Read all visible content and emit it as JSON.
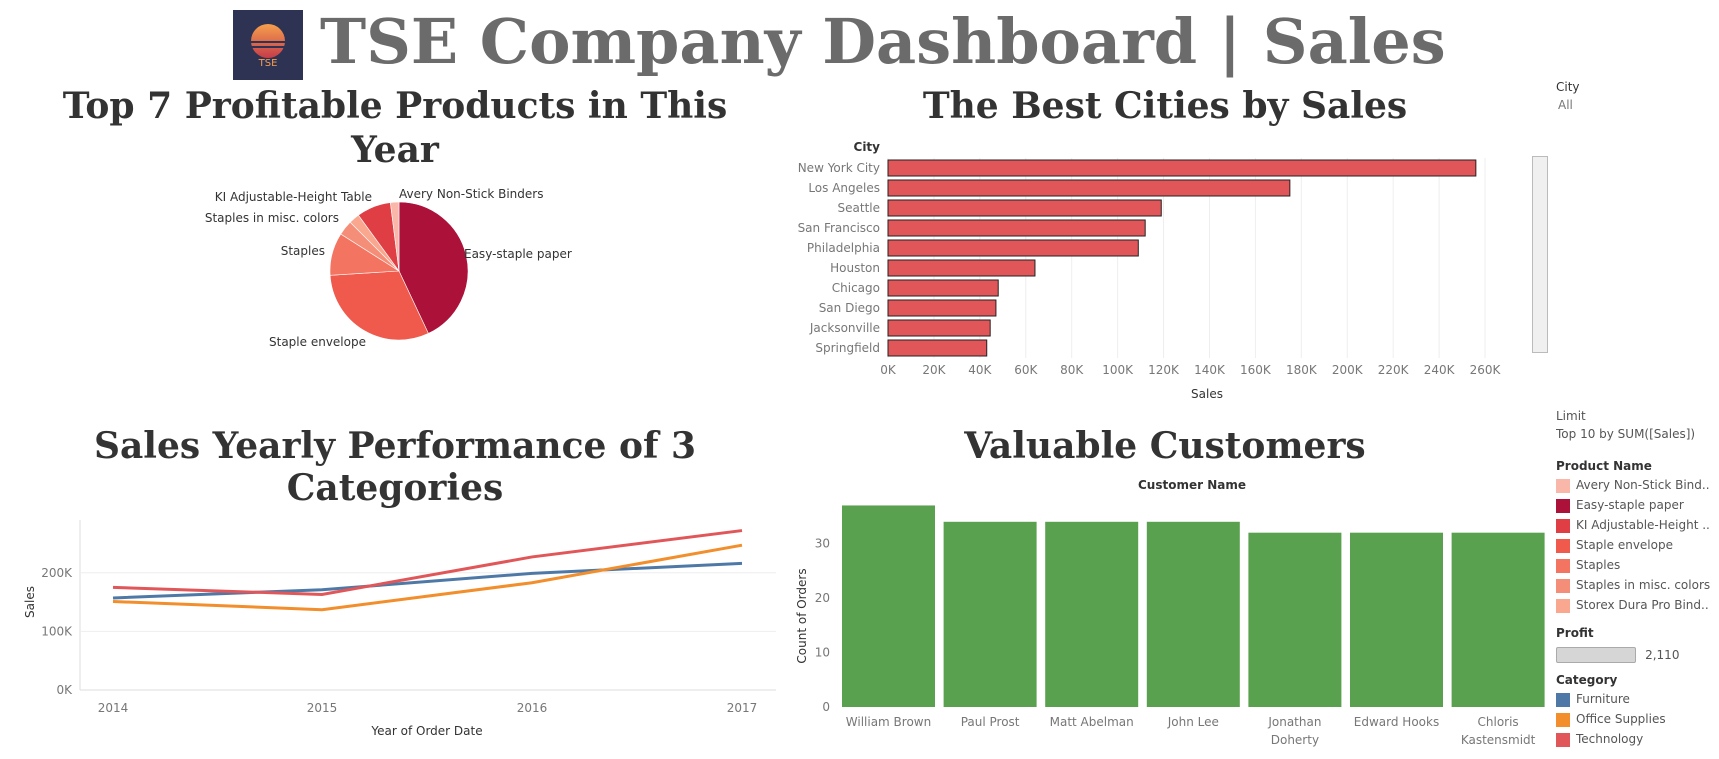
{
  "header": {
    "title": "TSE Company Dashboard | Sales",
    "logo_text": "TSE"
  },
  "panels": {
    "pie_title": "Top 7 Profitable Products in This Year",
    "bar_title": "The Best Cities by Sales",
    "line_title_line1": "Sales Yearly Performance of 3",
    "line_title_line2": "Categories",
    "customers_title": "Valuable Customers"
  },
  "filters": {
    "city_label": "City",
    "city_value": "All",
    "limit_label": "Limit",
    "limit_value": "Top 10 by SUM([Sales])"
  },
  "legend_product": {
    "title": "Product Name",
    "items": [
      {
        "label": "Avery Non-Stick Bind..",
        "color": "#f9b7aa"
      },
      {
        "label": "Easy-staple paper",
        "color": "#ab1139"
      },
      {
        "label": "KI Adjustable-Height ..",
        "color": "#e03e45"
      },
      {
        "label": "Staple envelope",
        "color": "#ef5a4d"
      },
      {
        "label": "Staples",
        "color": "#f37561"
      },
      {
        "label": "Staples in misc. colors",
        "color": "#f58e78"
      },
      {
        "label": "Storex Dura Pro Bind..",
        "color": "#f9a88f"
      }
    ]
  },
  "legend_profit": {
    "title": "Profit",
    "value_label": "2,110"
  },
  "legend_category": {
    "title": "Category",
    "items": [
      {
        "label": "Furniture",
        "color": "#4e79a7"
      },
      {
        "label": "Office Supplies",
        "color": "#f28e2b"
      },
      {
        "label": "Technology",
        "color": "#e15759"
      }
    ]
  },
  "chart_data": [
    {
      "type": "pie",
      "title": "Top 7 Profitable Products in This Year",
      "slices": [
        {
          "label": "Easy-staple paper",
          "value": 43,
          "color": "#ab1139"
        },
        {
          "label": "Staple envelope",
          "value": 31,
          "color": "#ef5a4d"
        },
        {
          "label": "Staples",
          "value": 10,
          "color": "#f37561"
        },
        {
          "label": "Staples in misc. colors",
          "value": 3.5,
          "color": "#f58e78"
        },
        {
          "label": "Storex Dura Pro Bind..",
          "value": 2.5,
          "color": "#f9a88f"
        },
        {
          "label": "KI Adjustable-Height Table",
          "value": 8,
          "color": "#e03e45"
        },
        {
          "label": "Avery Non-Stick Binders",
          "value": 2,
          "color": "#f9b7aa"
        }
      ],
      "visible_labels": [
        "Avery Non-Stick Binders",
        "Easy-staple paper",
        "KI Adjustable-Height Table",
        "Staples in misc. colors",
        "Staples",
        "Staple envelope"
      ]
    },
    {
      "type": "bar",
      "title": "The Best Cities by Sales",
      "orientation": "horizontal",
      "ylabel": "City",
      "xlabel": "Sales",
      "categories": [
        "New York City",
        "Los Angeles",
        "Seattle",
        "San Francisco",
        "Philadelphia",
        "Houston",
        "Chicago",
        "San Diego",
        "Jacksonville",
        "Springfield"
      ],
      "values": [
        256000,
        175000,
        119000,
        112000,
        109000,
        64000,
        48000,
        47000,
        44500,
        43000
      ],
      "color": "#e15759",
      "xlim": [
        0,
        270000
      ],
      "xticks": [
        "0K",
        "20K",
        "40K",
        "60K",
        "80K",
        "100K",
        "120K",
        "140K",
        "160K",
        "180K",
        "200K",
        "220K",
        "240K",
        "260K"
      ]
    },
    {
      "type": "line",
      "title": "Sales Yearly Performance of 3 Categories",
      "xlabel": "Year of Order Date",
      "ylabel": "Sales",
      "x": [
        "2014",
        "2015",
        "2016",
        "2017"
      ],
      "ylim": [
        0,
        290000
      ],
      "yticks": [
        "0K",
        "100K",
        "200K"
      ],
      "series": [
        {
          "name": "Furniture",
          "values": [
            157000,
            171000,
            199000,
            216000
          ],
          "color": "#4e79a7"
        },
        {
          "name": "Office Supplies",
          "values": [
            151000,
            137000,
            183000,
            247000
          ],
          "color": "#f28e2b"
        },
        {
          "name": "Technology",
          "values": [
            175000,
            163000,
            227000,
            272000
          ],
          "color": "#e15759"
        }
      ]
    },
    {
      "type": "bar",
      "title": "Valuable Customers",
      "header": "Customer Name",
      "ylabel": "Count of Orders",
      "categories": [
        "William Brown",
        "Paul Prost",
        "Matt Abelman",
        "John Lee",
        "Jonathan Doherty",
        "Edward Hooks",
        "Chloris Kastensmidt"
      ],
      "category_lines": [
        [
          "William Brown"
        ],
        [
          "Paul Prost"
        ],
        [
          "Matt Abelman"
        ],
        [
          "John Lee"
        ],
        [
          "Jonathan",
          "Doherty"
        ],
        [
          "Edward Hooks"
        ],
        [
          "Chloris",
          "Kastensmidt"
        ]
      ],
      "values": [
        37,
        34,
        34,
        34,
        32,
        32,
        32
      ],
      "color": "#59a14f",
      "ylim": [
        0,
        38
      ],
      "yticks": [
        "0",
        "10",
        "20",
        "30"
      ]
    }
  ]
}
